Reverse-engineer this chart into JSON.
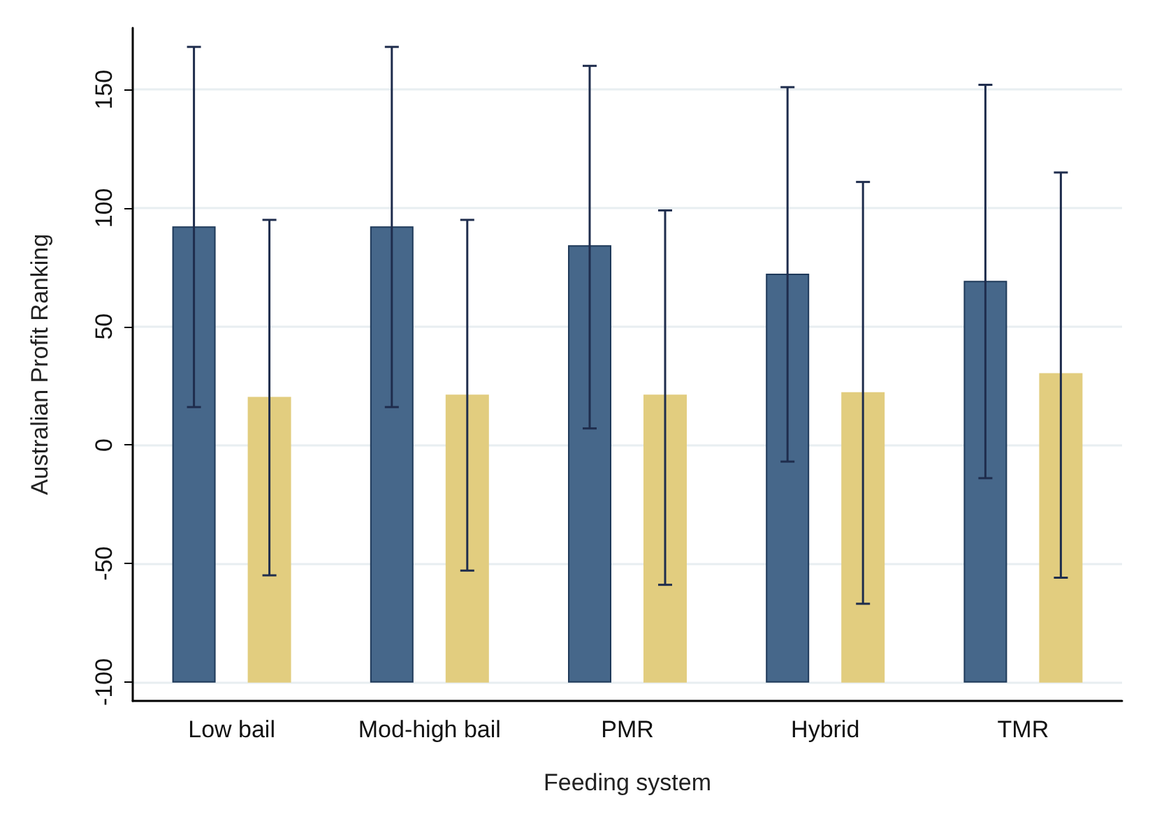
{
  "chart_data": {
    "type": "bar",
    "xlabel": "Feeding system",
    "ylabel": "Australian Profit Ranking",
    "categories": [
      "Low bail",
      "Mod-high bail",
      "PMR",
      "Hybrid",
      "TMR"
    ],
    "series": [
      {
        "color": "#46678a",
        "base": [
          -100,
          -100,
          -100,
          -100,
          -100
        ],
        "values": [
          192,
          192,
          184,
          172,
          169
        ],
        "errors": [
          [
            16,
            168
          ],
          [
            16,
            168
          ],
          [
            7,
            160
          ],
          [
            -7,
            151
          ],
          [
            -14,
            152
          ]
        ]
      },
      {
        "color": "#e2cd7f",
        "base": [
          -100,
          -100,
          -100,
          -100,
          -100
        ],
        "values": [
          120,
          121,
          121,
          122,
          130
        ],
        "errors": [
          [
            -55,
            95
          ],
          [
            -53,
            95
          ],
          [
            -59,
            99
          ],
          [
            -67,
            111
          ],
          [
            -56,
            115
          ]
        ]
      }
    ],
    "ylim": [
      -108,
      176
    ],
    "yticks": [
      -100,
      -50,
      0,
      50,
      100,
      150
    ],
    "grid": "y"
  }
}
